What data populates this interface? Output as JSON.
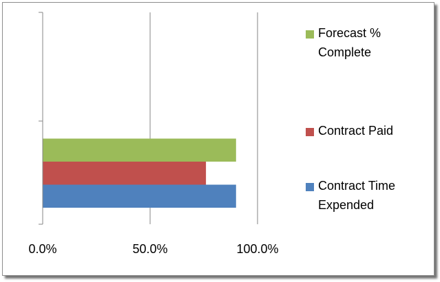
{
  "chart_data": {
    "type": "bar",
    "orientation": "horizontal",
    "title": "",
    "xlabel": "",
    "ylabel": "",
    "xlim": [
      0,
      100
    ],
    "x_ticks": [
      "0.0%",
      "50.0%",
      "100.0%"
    ],
    "grid": "vertical major gridlines",
    "legend_position": "right",
    "categories": [
      ""
    ],
    "series": [
      {
        "name": "Contract Time Expended",
        "values": [
          90
        ],
        "color": "#4f81bd"
      },
      {
        "name": "Contract Paid",
        "values": [
          76
        ],
        "color": "#c0504d"
      },
      {
        "name": "Forecast % Complete",
        "values": [
          90
        ],
        "color": "#9bbb59"
      }
    ]
  },
  "legend": {
    "items": [
      {
        "label": "Forecast % Complete",
        "color": "#9bbb59"
      },
      {
        "label": "Contract Paid",
        "color": "#c0504d"
      },
      {
        "label": "Contract Time Expended",
        "color": "#4f81bd"
      }
    ]
  }
}
